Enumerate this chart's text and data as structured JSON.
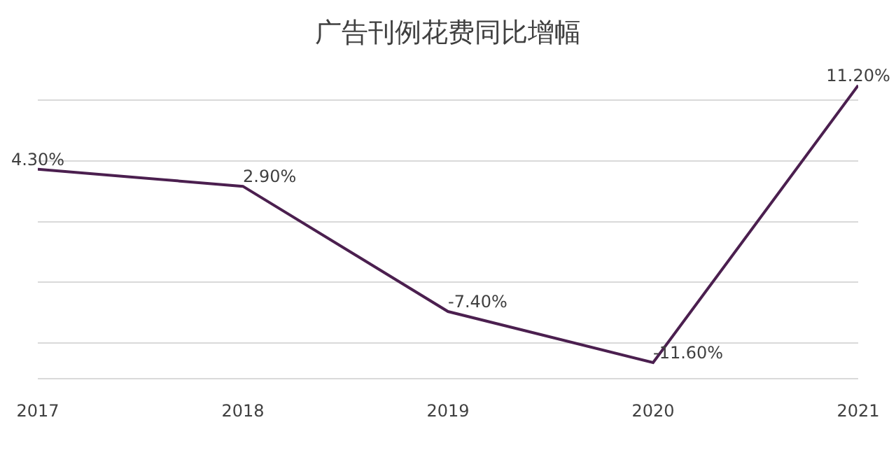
{
  "chart_data": {
    "type": "line",
    "title": "广告刊例花费同比增幅",
    "categories": [
      "2017",
      "2018",
      "2019",
      "2020",
      "2021"
    ],
    "series": [
      {
        "color": "#4b1f4f",
        "values": [
          4.3,
          2.9,
          -7.4,
          -11.6,
          11.2
        ],
        "value_labels": [
          "4.30%",
          "2.90%",
          "-7.40%",
          "-11.60%",
          "11.20%"
        ]
      }
    ],
    "tick_labels": "x",
    "grid": "y",
    "marker": "none",
    "line_style": "solid"
  }
}
